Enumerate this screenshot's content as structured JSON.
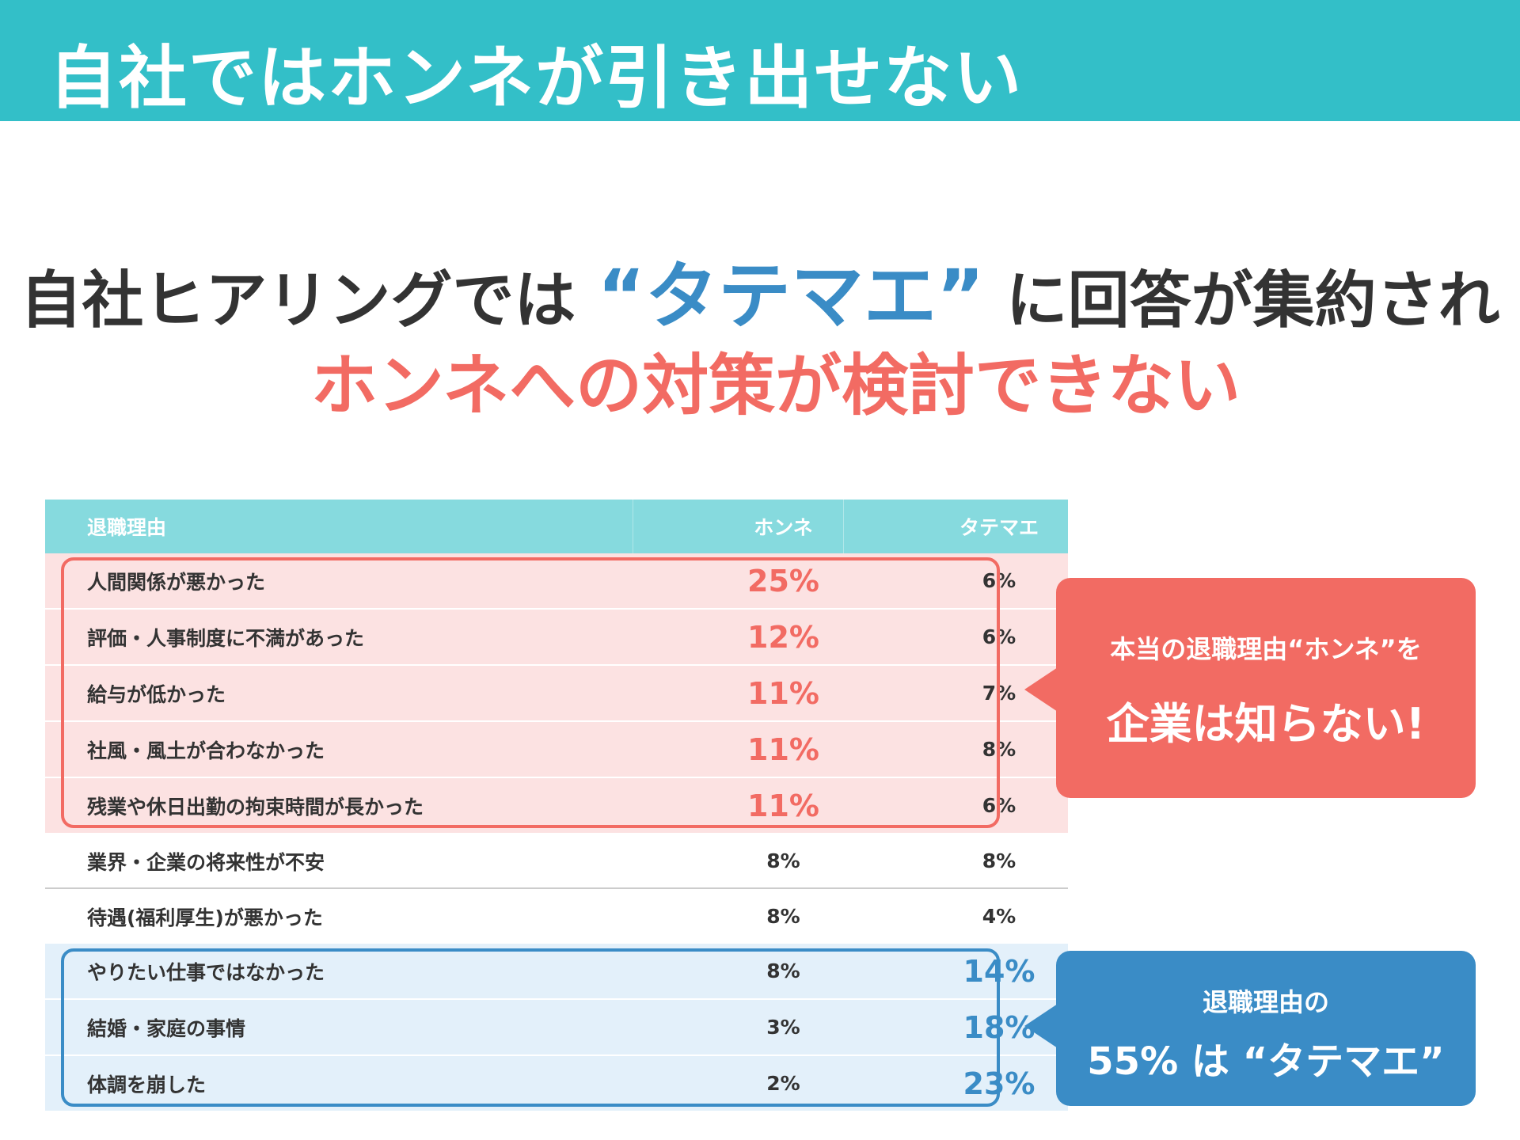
{
  "header": {
    "title": "自社ではホンネが引き出せない"
  },
  "headline": {
    "before": "自社ヒアリングでは",
    "accent": "“タテマエ”",
    "after": "に回答が集約され",
    "sub": "ホンネへの対策が検討できない"
  },
  "table": {
    "headers": [
      "退職理由",
      "ホンネ",
      "タテマエ"
    ],
    "rows": [
      {
        "reason": "人間関係が悪かった",
        "honne": "25%",
        "tatemae": "6%"
      },
      {
        "reason": "評価・人事制度に不満があった",
        "honne": "12%",
        "tatemae": "6%"
      },
      {
        "reason": "給与が低かった",
        "honne": "11%",
        "tatemae": "7%"
      },
      {
        "reason": "社風・風土が合わなかった",
        "honne": "11%",
        "tatemae": "8%"
      },
      {
        "reason": "残業や休日出勤の拘束時間が長かった",
        "honne": "11%",
        "tatemae": "6%"
      },
      {
        "reason": "業界・企業の将来性が不安",
        "honne": "8%",
        "tatemae": "8%"
      },
      {
        "reason": "待遇(福利厚生)が悪かった",
        "honne": "8%",
        "tatemae": "4%"
      },
      {
        "reason": "やりたい仕事ではなかった",
        "honne": "8%",
        "tatemae": "14%"
      },
      {
        "reason": "結婚・家庭の事情",
        "honne": "3%",
        "tatemae": "18%"
      },
      {
        "reason": "体調を崩した",
        "honne": "2%",
        "tatemae": "23%"
      }
    ]
  },
  "callout_red": {
    "line1": "本当の退職理由“ホンネ”を",
    "line2": "企業は知らない!"
  },
  "callout_blue": {
    "line1": "退職理由の",
    "line2": "55% は “タテマエ”"
  },
  "colors": {
    "header": "#33bfc8",
    "red": "#f26b63",
    "blue": "#3a8cc6",
    "table_header": "#86dade"
  }
}
